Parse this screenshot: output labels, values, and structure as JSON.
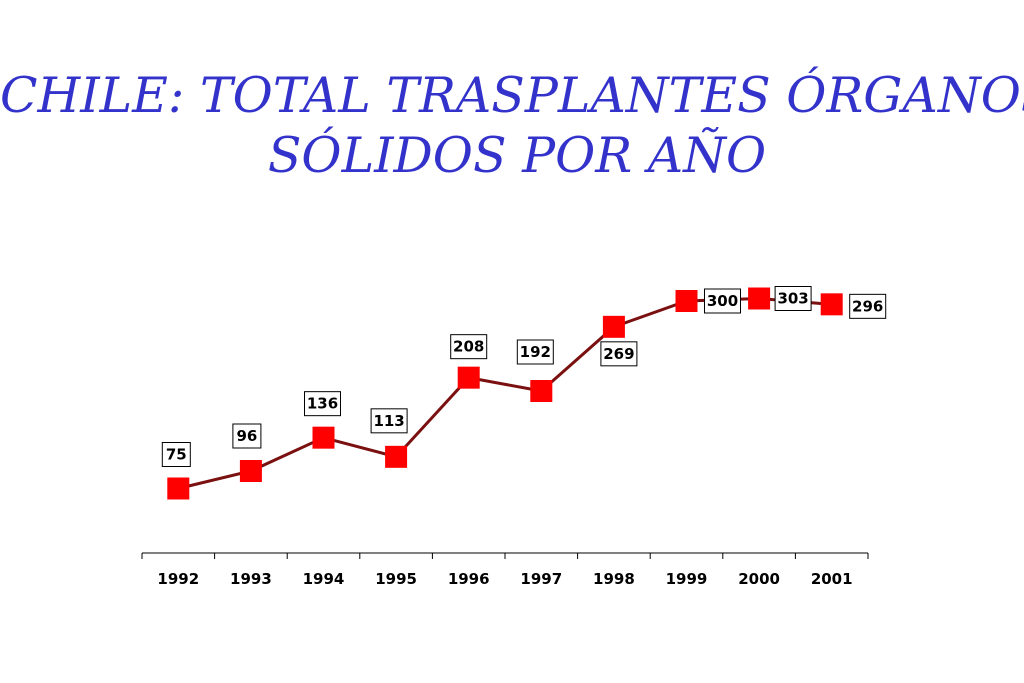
{
  "title_lines": [
    "CHILE: TOTAL TRASPLANTES ÓRGANOS",
    "SÓLIDOS POR AÑO"
  ],
  "chart_data": {
    "type": "line",
    "title": "CHILE: TOTAL TRASPLANTES ÓRGANOS SÓLIDOS POR AÑO",
    "categories": [
      "1992",
      "1993",
      "1994",
      "1995",
      "1996",
      "1997",
      "1998",
      "1999",
      "2000",
      "2001"
    ],
    "series": [
      {
        "values": [
          75,
          96,
          136,
          113,
          208,
          192,
          269,
          300,
          303,
          296
        ]
      }
    ],
    "data_labels": [
      "75",
      "96",
      "136",
      "113",
      "208",
      "192",
      "269",
      "300",
      "303",
      "296"
    ],
    "ylim": [
      0,
      400
    ],
    "grid": false,
    "legend": "none",
    "colors": {
      "line": "#7a1010",
      "marker": "#ff0000",
      "title": "#3333cc"
    }
  }
}
